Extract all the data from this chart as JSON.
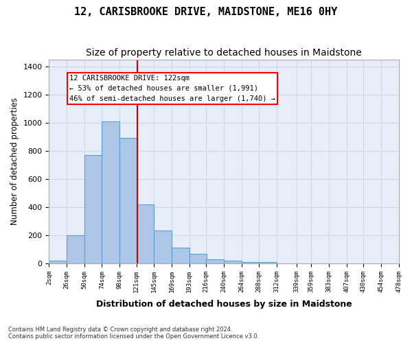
{
  "title": "12, CARISBROOKE DRIVE, MAIDSTONE, ME16 0HY",
  "subtitle": "Size of property relative to detached houses in Maidstone",
  "xlabel": "Distribution of detached houses by size in Maidstone",
  "ylabel": "Number of detached properties",
  "footnote1": "Contains HM Land Registry data © Crown copyright and database right 2024.",
  "footnote2": "Contains public sector information licensed under the Open Government Licence v3.0.",
  "annotation_line1": "12 CARISBROOKE DRIVE: 122sqm",
  "annotation_line2": "← 53% of detached houses are smaller (1,991)",
  "annotation_line3": "46% of semi-detached houses are larger (1,740) →",
  "bar_color": "#aec6e8",
  "bar_edge_color": "#5a9fd4",
  "vline_color": "#cc0000",
  "vline_x": 122,
  "bin_width": 24,
  "bin_starts": [
    2,
    26,
    50,
    74,
    98,
    121,
    145,
    169,
    193,
    216,
    240,
    264,
    288,
    312,
    339,
    359,
    383,
    407,
    430,
    454
  ],
  "bar_heights": [
    20,
    200,
    770,
    1010,
    890,
    420,
    235,
    110,
    70,
    30,
    20,
    10,
    10,
    0,
    0,
    0,
    0,
    0,
    0,
    0
  ],
  "xlim": [
    2,
    478
  ],
  "ylim": [
    0,
    1450
  ],
  "yticks": [
    0,
    200,
    400,
    600,
    800,
    1000,
    1200,
    1400
  ],
  "xtick_labels": [
    "2sqm",
    "26sqm",
    "50sqm",
    "74sqm",
    "98sqm",
    "121sqm",
    "145sqm",
    "169sqm",
    "193sqm",
    "216sqm",
    "240sqm",
    "264sqm",
    "288sqm",
    "312sqm",
    "339sqm",
    "359sqm",
    "383sqm",
    "407sqm",
    "430sqm",
    "454sqm",
    "478sqm"
  ],
  "xtick_positions": [
    2,
    26,
    50,
    74,
    98,
    121,
    145,
    169,
    193,
    216,
    240,
    264,
    288,
    312,
    339,
    359,
    383,
    407,
    430,
    454,
    478
  ],
  "grid_color": "#d0d8e8",
  "bg_color": "#e8eef8",
  "title_fontsize": 11,
  "subtitle_fontsize": 10
}
